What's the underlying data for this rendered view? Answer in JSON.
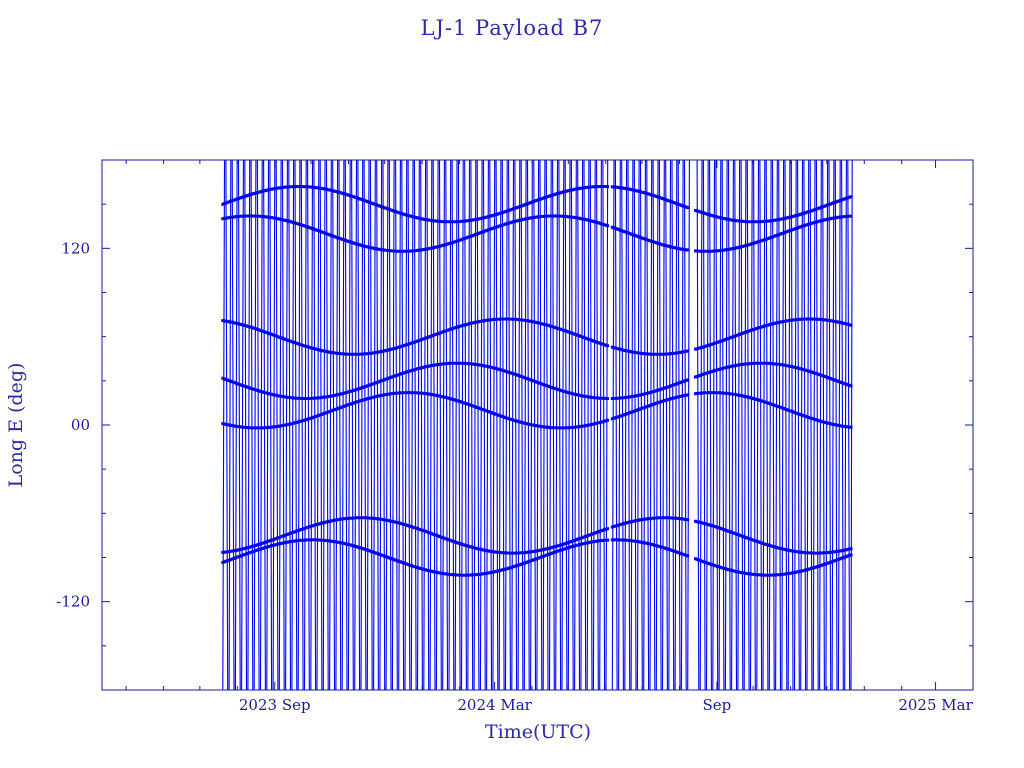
{
  "chart_data": {
    "type": "line",
    "title": "LJ-1 Payload B7",
    "xlabel": "Time(UTC)",
    "ylabel": "Long E (deg)",
    "ylim": [
      -180,
      180
    ],
    "xlim": [
      "2023-04-11",
      "2025-04-01"
    ],
    "y_ticks": [
      {
        "value": 120,
        "label": "120"
      },
      {
        "value": 0,
        "label": "00"
      },
      {
        "value": -120,
        "label": "-120"
      }
    ],
    "x_ticks": [
      {
        "value": "2023-09-01",
        "label": "2023 Sep"
      },
      {
        "value": "2024-03-01",
        "label": "2024 Mar"
      },
      {
        "value": "2024-09-01",
        "label": "Sep"
      },
      {
        "value": "2025-03-01",
        "label": "2025 Mar"
      }
    ],
    "grid": false,
    "series": [
      {
        "color": "#0000ff",
        "x_start": "2023-07-20",
        "x_end": "2024-12-22",
        "period_days": 2.6,
        "gaps": [
          [
            "2024-06-03",
            "2024-06-06"
          ],
          [
            "2024-08-08",
            "2024-08-14"
          ]
        ],
        "x": [
          "2023-07-20",
          "2023-08-20",
          "2023-09-20",
          "2023-10-20",
          "2023-11-20",
          "2023-12-20",
          "2024-01-20",
          "2024-02-20",
          "2024-03-20",
          "2024-04-20",
          "2024-05-20",
          "2024-06-20",
          "2024-07-20",
          "2024-08-20",
          "2024-09-20",
          "2024-10-20",
          "2024-11-20",
          "2024-12-22"
        ],
        "y": [
          -180,
          180,
          -180,
          180,
          -180,
          180,
          -180,
          180,
          -180,
          180,
          -180,
          180,
          -180,
          180,
          -180,
          180,
          -180,
          180
        ]
      }
    ]
  }
}
